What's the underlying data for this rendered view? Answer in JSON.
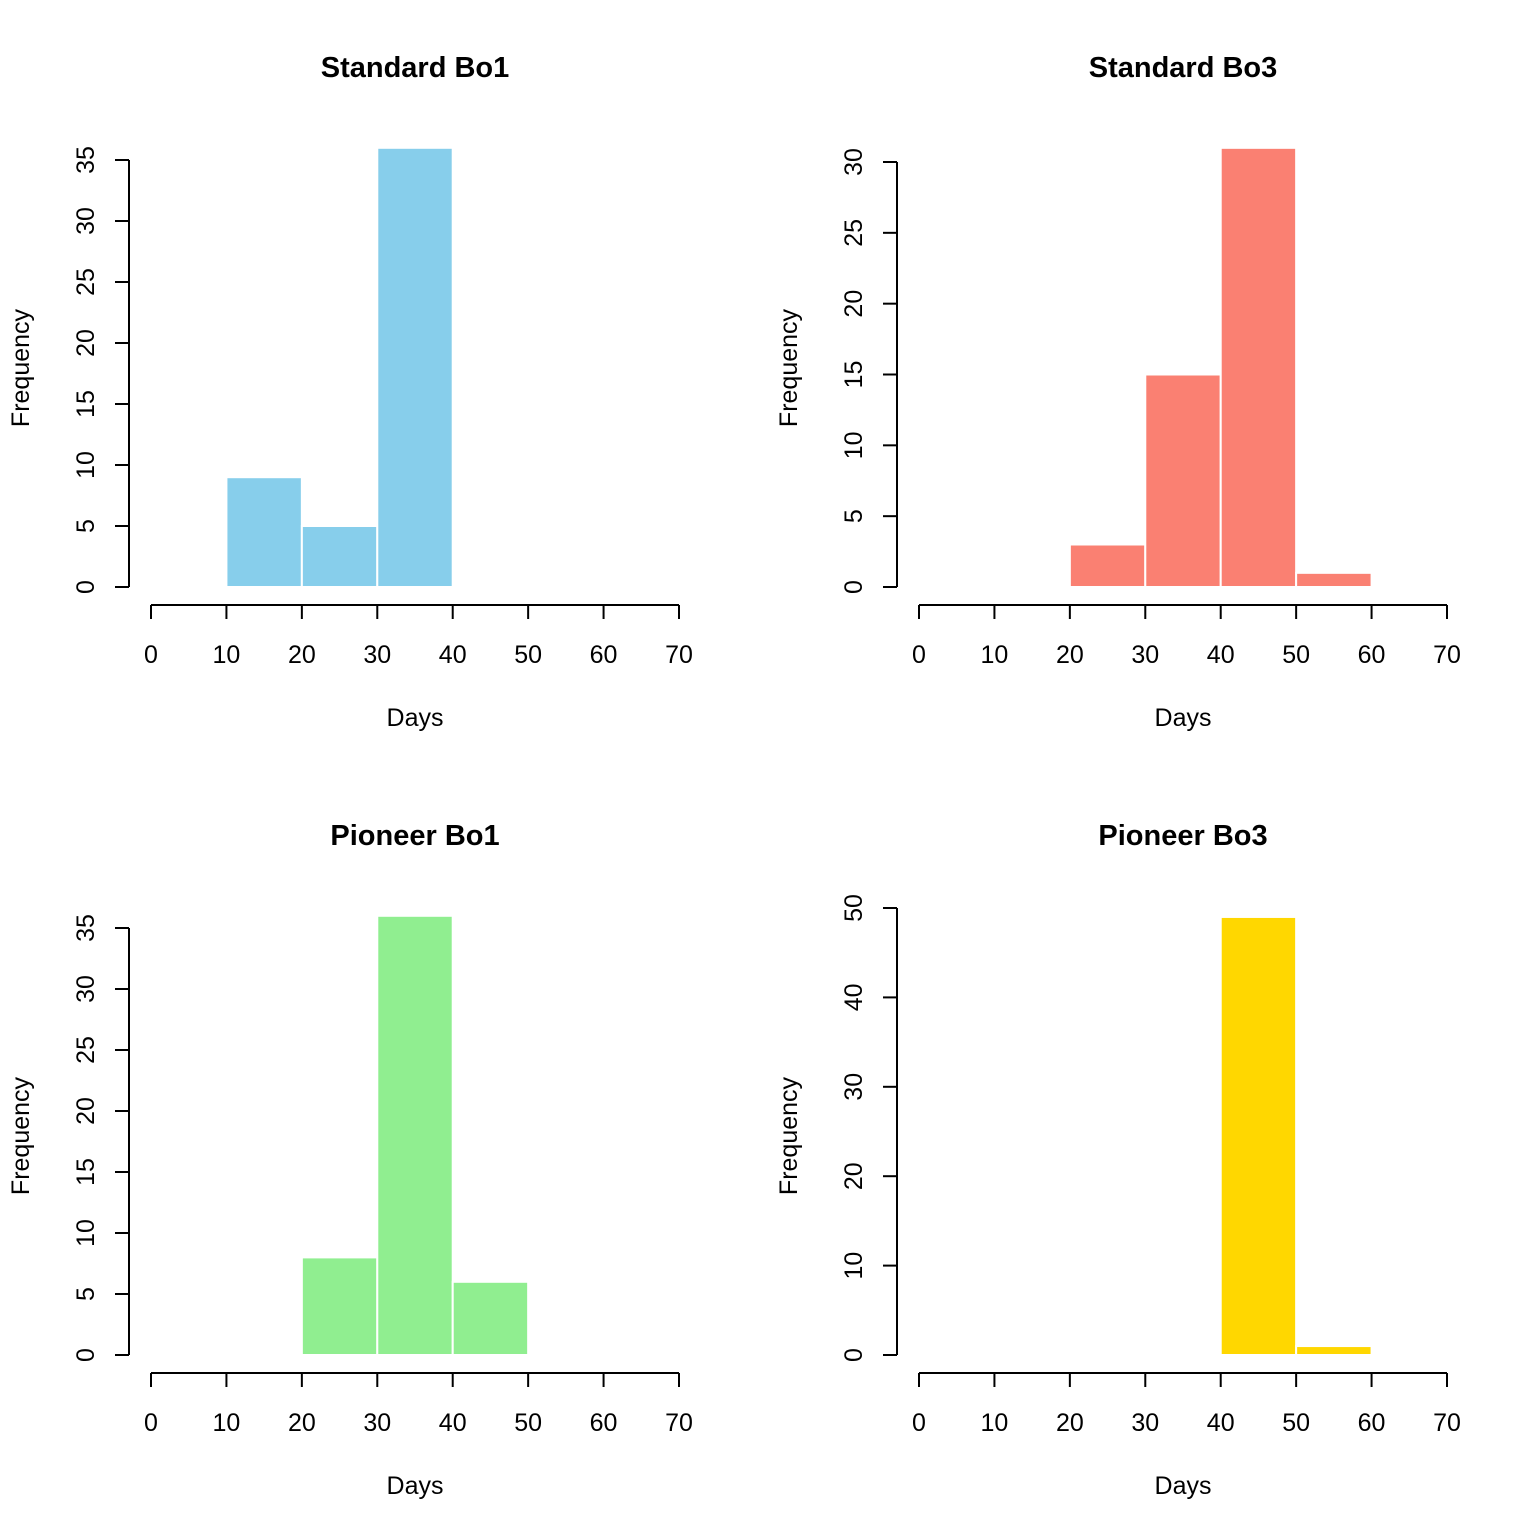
{
  "chart_data": [
    {
      "type": "bar",
      "title": "Standard Bo1",
      "xlabel": "Days",
      "ylabel": "Frequency",
      "bins": [
        [
          10,
          20
        ],
        [
          20,
          30
        ],
        [
          30,
          40
        ]
      ],
      "values": [
        9,
        5,
        36
      ],
      "color": "#87CEEB",
      "xlim": [
        0,
        70
      ],
      "ylim": [
        0,
        35
      ],
      "xticks": [
        0,
        10,
        20,
        30,
        40,
        50,
        60,
        70
      ],
      "yticks": [
        0,
        5,
        10,
        15,
        20,
        25,
        30,
        35
      ]
    },
    {
      "type": "bar",
      "title": "Standard Bo3",
      "xlabel": "Days",
      "ylabel": "Frequency",
      "bins": [
        [
          20,
          30
        ],
        [
          30,
          40
        ],
        [
          40,
          50
        ],
        [
          50,
          60
        ]
      ],
      "values": [
        3,
        15,
        31,
        1
      ],
      "color": "#FA8072",
      "xlim": [
        0,
        70
      ],
      "ylim": [
        0,
        30
      ],
      "xticks": [
        0,
        10,
        20,
        30,
        40,
        50,
        60,
        70
      ],
      "yticks": [
        0,
        5,
        10,
        15,
        20,
        25,
        30
      ]
    },
    {
      "type": "bar",
      "title": "Pioneer Bo1",
      "xlabel": "Days",
      "ylabel": "Frequency",
      "bins": [
        [
          20,
          30
        ],
        [
          30,
          40
        ],
        [
          40,
          50
        ]
      ],
      "values": [
        8,
        36,
        6
      ],
      "color": "#90EE90",
      "xlim": [
        0,
        70
      ],
      "ylim": [
        0,
        35
      ],
      "xticks": [
        0,
        10,
        20,
        30,
        40,
        50,
        60,
        70
      ],
      "yticks": [
        0,
        5,
        10,
        15,
        20,
        25,
        30,
        35
      ]
    },
    {
      "type": "bar",
      "title": "Pioneer Bo3",
      "xlabel": "Days",
      "ylabel": "Frequency",
      "bins": [
        [
          40,
          50
        ],
        [
          50,
          60
        ]
      ],
      "values": [
        49,
        1
      ],
      "color": "#FFD700",
      "xlim": [
        0,
        70
      ],
      "ylim": [
        0,
        50
      ],
      "xticks": [
        0,
        10,
        20,
        30,
        40,
        50,
        60,
        70
      ],
      "yticks": [
        0,
        10,
        20,
        30,
        40,
        50
      ]
    }
  ]
}
